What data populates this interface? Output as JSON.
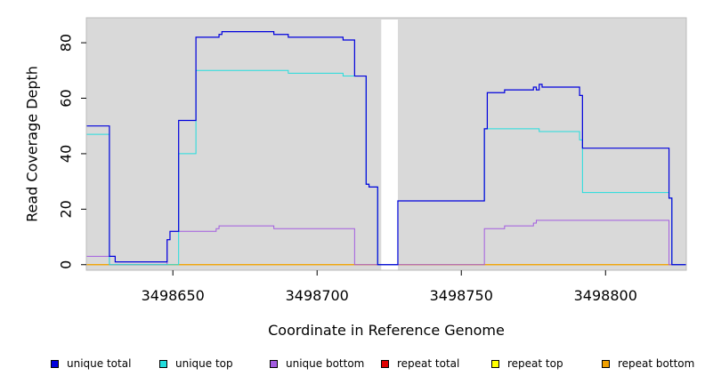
{
  "chart_data": {
    "type": "line",
    "xlabel": "Coordinate in Reference Genome",
    "ylabel": "Read Coverage Depth",
    "xlim": [
      3498620,
      3498828
    ],
    "ylim": [
      -2,
      89
    ],
    "x_ticks": [
      3498650,
      3498700,
      3498750,
      3498800
    ],
    "x_tick_labels": [
      "3498650",
      "3498700",
      "3498750",
      "3498800"
    ],
    "y_ticks": [
      0,
      20,
      40,
      60,
      80
    ],
    "y_tick_labels": [
      "0",
      "20",
      "40",
      "60",
      "80"
    ],
    "grid": false,
    "background_color": "#d9d9d9",
    "gap_region": [
      3498721,
      3498728
    ],
    "legend_position": "bottom",
    "series": [
      {
        "name": "unique total",
        "color": "#0000dd",
        "x": [
          3498620,
          3498628,
          3498628,
          3498630,
          3498630,
          3498631,
          3498631,
          3498648,
          3498648,
          3498649,
          3498649,
          3498652,
          3498652,
          3498658,
          3498658,
          3498666,
          3498666,
          3498667,
          3498667,
          3498685,
          3498685,
          3498690,
          3498690,
          3498709,
          3498709,
          3498713,
          3498713,
          3498717,
          3498717,
          3498718,
          3498718,
          3498721,
          3498721,
          3498728,
          3498728,
          3498758,
          3498758,
          3498759,
          3498759,
          3498765,
          3498765,
          3498775,
          3498775,
          3498776,
          3498776,
          3498777,
          3498777,
          3498778,
          3498778,
          3498791,
          3498791,
          3498792,
          3498792,
          3498822,
          3498822,
          3498823,
          3498823,
          3498828
        ],
        "y": [
          50,
          50,
          3,
          3,
          1,
          1,
          1,
          1,
          9,
          9,
          12,
          12,
          52,
          52,
          82,
          82,
          83,
          83,
          84,
          84,
          83,
          83,
          82,
          82,
          81,
          81,
          68,
          68,
          29,
          29,
          28,
          28,
          0,
          0,
          23,
          23,
          49,
          49,
          62,
          62,
          63,
          63,
          64,
          64,
          63,
          63,
          65,
          65,
          64,
          64,
          61,
          61,
          42,
          42,
          24,
          24,
          0,
          0
        ]
      },
      {
        "name": "unique top",
        "color": "#22dddd",
        "x": [
          3498620,
          3498628,
          3498628,
          3498652,
          3498652,
          3498658,
          3498658,
          3498690,
          3498690,
          3498709,
          3498709,
          3498713,
          3498713,
          3498717,
          3498717,
          3498718,
          3498718,
          3498721,
          3498721,
          3498728,
          3498728,
          3498758,
          3498758,
          3498759,
          3498759,
          3498777,
          3498777,
          3498791,
          3498791,
          3498792,
          3498792,
          3498822,
          3498822,
          3498823,
          3498823,
          3498828
        ],
        "y": [
          47,
          47,
          0,
          0,
          40,
          40,
          70,
          70,
          69,
          69,
          68,
          68,
          68,
          68,
          29,
          29,
          28,
          28,
          0,
          0,
          23,
          23,
          49,
          49,
          49,
          49,
          48,
          48,
          45,
          45,
          26,
          26,
          24,
          24,
          0,
          0
        ]
      },
      {
        "name": "unique bottom",
        "color": "#a35ce0",
        "x": [
          3498620,
          3498628,
          3498628,
          3498648,
          3498648,
          3498649,
          3498649,
          3498665,
          3498665,
          3498666,
          3498666,
          3498685,
          3498685,
          3498713,
          3498713,
          3498758,
          3498758,
          3498765,
          3498765,
          3498775,
          3498775,
          3498776,
          3498776,
          3498822,
          3498822,
          3498828
        ],
        "y": [
          3,
          3,
          0,
          0,
          9,
          9,
          12,
          12,
          13,
          13,
          14,
          14,
          13,
          13,
          0,
          0,
          13,
          13,
          14,
          14,
          15,
          15,
          16,
          16,
          0,
          0
        ]
      },
      {
        "name": "repeat total",
        "color": "#e00000",
        "x": [
          3498620,
          3498828
        ],
        "y": [
          0,
          0
        ]
      },
      {
        "name": "repeat top",
        "color": "#ffff00",
        "x": [
          3498620,
          3498828
        ],
        "y": [
          0,
          0
        ]
      },
      {
        "name": "repeat bottom",
        "color": "#f0a000",
        "x": [
          3498620,
          3498828
        ],
        "y": [
          0,
          0
        ]
      }
    ]
  },
  "legend": [
    {
      "label": "unique total",
      "color": "#0000dd"
    },
    {
      "label": "unique top",
      "color": "#22dddd"
    },
    {
      "label": "unique bottom",
      "color": "#a35ce0"
    },
    {
      "label": "repeat total",
      "color": "#e00000"
    },
    {
      "label": "repeat top",
      "color": "#ffff00"
    },
    {
      "label": "repeat bottom",
      "color": "#f0a000"
    }
  ]
}
